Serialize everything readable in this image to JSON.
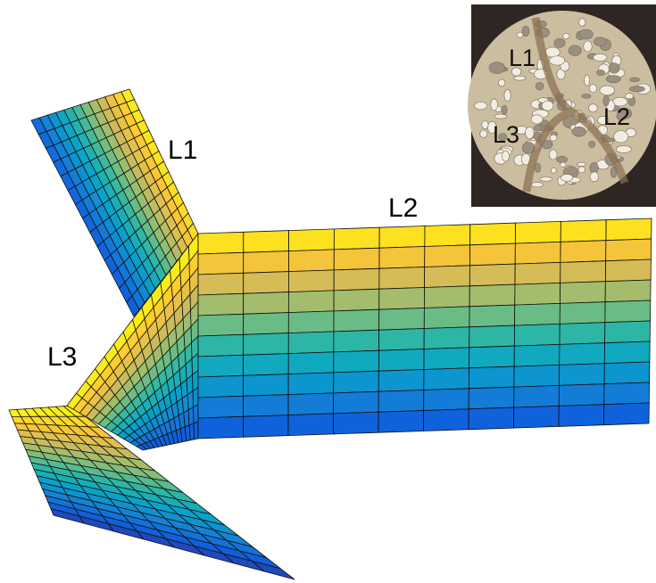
{
  "figure_labels": [
    "L1",
    "L2",
    "L3"
  ],
  "inset_labels": [
    "L1",
    "L2",
    "L3"
  ]
}
